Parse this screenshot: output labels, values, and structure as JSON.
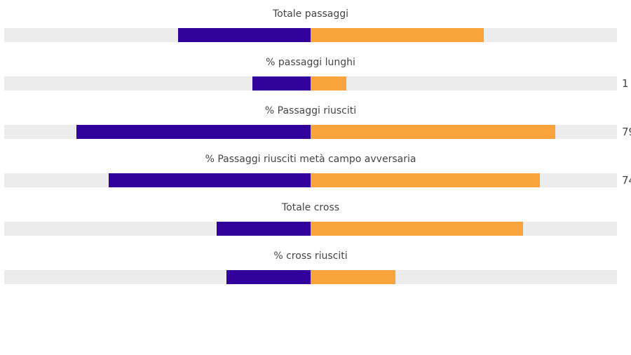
{
  "chart_data": {
    "type": "bar",
    "orientation": "horizontal-diverging",
    "categories": [
      "Totale passaggi",
      "% passaggi lunghi",
      "% Passaggi riusciti",
      "% Passaggi riusciti metà campo avversaria",
      "Totale cross",
      "% cross riusciti"
    ],
    "series": [
      {
        "side": "left",
        "color": "#32009a",
        "values": [
          0.216,
          0.095,
          0.382,
          0.33,
          0.153,
          0.137
        ]
      },
      {
        "side": "right",
        "color": "#f8a33c",
        "values": [
          0.283,
          0.058,
          0.399,
          0.374,
          0.347,
          0.139
        ]
      }
    ],
    "track_color": "#ececec",
    "side_values": [
      "",
      "1",
      "79",
      "74",
      "",
      ""
    ],
    "grid": false,
    "legend": "none"
  }
}
